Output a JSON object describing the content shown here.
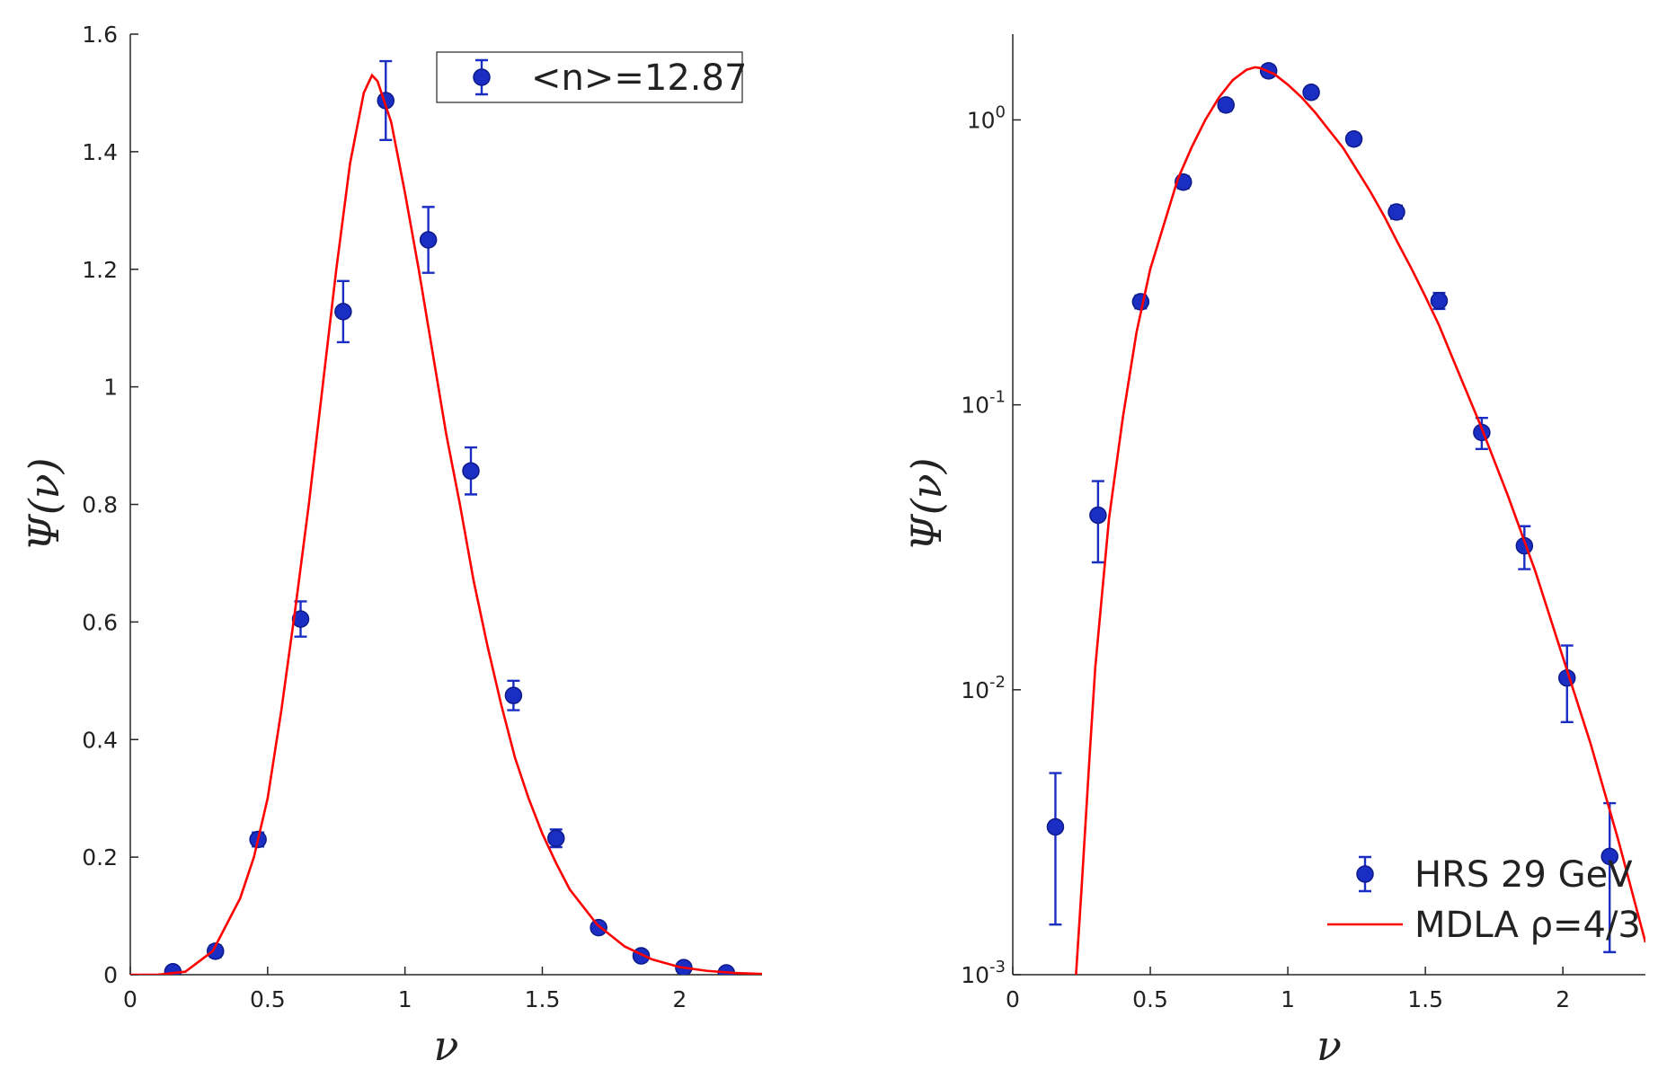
{
  "chart_data": [
    {
      "type": "errorbar",
      "xlabel": "ν",
      "ylabel": "Ψ(ν)",
      "xlim": [
        0,
        2.3
      ],
      "ylim": [
        0,
        1.6
      ],
      "xticks": [
        0,
        0.5,
        1,
        1.5,
        2
      ],
      "yticks": [
        0,
        0.2,
        0.4,
        0.6,
        0.8,
        1,
        1.2,
        1.4,
        1.6
      ],
      "legend": "upper right",
      "legend_box": true,
      "series": [
        {
          "type": "errorbar",
          "name": "<n>=12.87",
          "color": "#1b2ec4",
          "x": [
            0.155,
            0.31,
            0.465,
            0.62,
            0.775,
            0.93,
            1.085,
            1.24,
            1.395,
            1.55,
            1.705,
            1.86,
            2.015,
            2.17
          ],
          "values": [
            0.005,
            0.04,
            0.23,
            0.605,
            1.128,
            1.487,
            1.25,
            0.857,
            0.475,
            0.232,
            0.08,
            0.032,
            0.012,
            0.003
          ],
          "errors": [
            0.005,
            0.01,
            0.012,
            0.03,
            0.052,
            0.067,
            0.056,
            0.04,
            0.025,
            0.015,
            0.006,
            0.004,
            0.003,
            0.002
          ]
        },
        {
          "type": "line",
          "color": "#ff0000",
          "x": [
            0,
            0.1,
            0.2,
            0.3,
            0.4,
            0.45,
            0.5,
            0.55,
            0.6,
            0.65,
            0.7,
            0.75,
            0.8,
            0.85,
            0.88,
            0.9,
            0.95,
            1.0,
            1.05,
            1.1,
            1.15,
            1.2,
            1.25,
            1.3,
            1.35,
            1.4,
            1.45,
            1.5,
            1.55,
            1.6,
            1.7,
            1.8,
            1.9,
            2.0,
            2.1,
            2.2,
            2.3
          ],
          "values": [
            0,
            0,
            0.005,
            0.04,
            0.13,
            0.2,
            0.3,
            0.45,
            0.62,
            0.8,
            1.0,
            1.2,
            1.38,
            1.5,
            1.53,
            1.52,
            1.45,
            1.33,
            1.2,
            1.06,
            0.92,
            0.8,
            0.67,
            0.56,
            0.46,
            0.37,
            0.3,
            0.24,
            0.19,
            0.145,
            0.085,
            0.048,
            0.026,
            0.013,
            0.0065,
            0.003,
            0.0013
          ]
        }
      ]
    },
    {
      "type": "errorbar",
      "xlabel": "ν",
      "ylabel": "Ψ(ν)",
      "xlim": [
        0,
        2.3
      ],
      "ylim": [
        0.001,
        2
      ],
      "yscale": "log",
      "xticks": [
        0,
        0.5,
        1,
        1.5,
        2
      ],
      "yticks": [
        {
          "value": 0.001,
          "label": "10^-3"
        },
        {
          "value": 0.01,
          "label": "10^-2"
        },
        {
          "value": 0.1,
          "label": "10^-1"
        },
        {
          "value": 1,
          "label": "10^0"
        }
      ],
      "legend": "lower right",
      "legend_box": false,
      "series": [
        {
          "type": "errorbar",
          "name": "HRS 29 GeV",
          "color": "#1b2ec4",
          "x": [
            0.155,
            0.31,
            0.465,
            0.62,
            0.775,
            0.93,
            1.085,
            1.24,
            1.395,
            1.55,
            1.705,
            1.86,
            2.015,
            2.17
          ],
          "values": [
            0.0033,
            0.041,
            0.23,
            0.605,
            1.128,
            1.487,
            1.25,
            0.857,
            0.475,
            0.232,
            0.08,
            0.032,
            0.011,
            0.0026
          ],
          "errors": [
            0.0018,
            0.013,
            0.012,
            0.03,
            0.052,
            0.067,
            0.056,
            0.04,
            0.025,
            0.015,
            0.01,
            0.0055,
            0.0033,
            0.0014
          ]
        },
        {
          "type": "line",
          "name": "MDLA ρ=4/3",
          "color": "#ff0000",
          "x": [
            0.23,
            0.25,
            0.28,
            0.3,
            0.35,
            0.4,
            0.45,
            0.5,
            0.6,
            0.65,
            0.7,
            0.75,
            0.8,
            0.85,
            0.88,
            0.9,
            0.95,
            1.0,
            1.05,
            1.1,
            1.15,
            1.2,
            1.25,
            1.3,
            1.35,
            1.4,
            1.45,
            1.5,
            1.55,
            1.6,
            1.7,
            1.8,
            1.9,
            2.0,
            2.1,
            2.2,
            2.3
          ],
          "values": [
            0.001,
            0.002,
            0.006,
            0.012,
            0.04,
            0.09,
            0.18,
            0.3,
            0.62,
            0.8,
            1.0,
            1.2,
            1.38,
            1.5,
            1.53,
            1.52,
            1.45,
            1.33,
            1.2,
            1.06,
            0.92,
            0.8,
            0.67,
            0.56,
            0.46,
            0.37,
            0.3,
            0.24,
            0.19,
            0.145,
            0.085,
            0.048,
            0.026,
            0.013,
            0.0065,
            0.003,
            0.0013
          ]
        }
      ]
    }
  ]
}
